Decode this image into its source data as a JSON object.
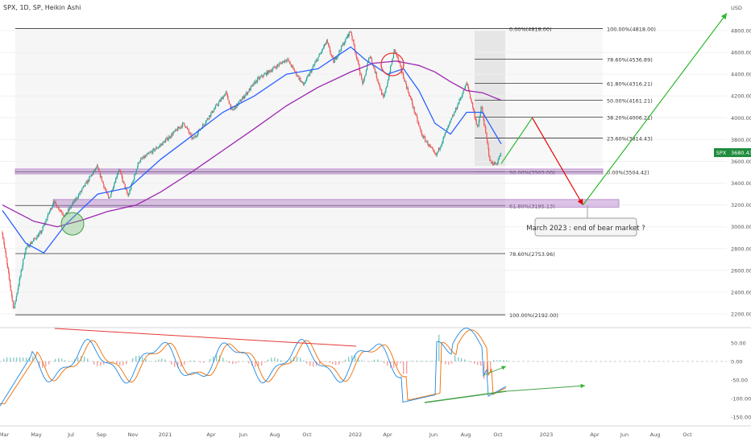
{
  "header": {
    "symbol_line": "SPX, 1D, SP, Heikin Ashi"
  },
  "price_axis": {
    "unit": "USD",
    "ticks": [
      "4800.00",
      "4600.00",
      "4400.00",
      "4200.00",
      "4000.00",
      "3800.00",
      "3600.00",
      "3400.00",
      "3200.00",
      "3000.00",
      "2800.00",
      "2600.00",
      "2400.00",
      "2200.00"
    ],
    "last_price_label": "3680.43",
    "ticker_label": "SPX",
    "last_price_color": "#1e8c3c"
  },
  "osc_axis": {
    "ticks": [
      "50.00",
      "0.00",
      "-50.00",
      "-100.00",
      "-150.00"
    ]
  },
  "time_axis": {
    "ticks": [
      "Mar",
      "May",
      "Jul",
      "Sep",
      "Nov",
      "2021",
      "Apr",
      "Jun",
      "Aug",
      "Oct",
      "2022",
      "Apr",
      "Jun",
      "Aug",
      "Oct",
      "2023",
      "Apr",
      "Jun",
      "Aug",
      "Oct"
    ]
  },
  "annotations": {
    "callout": "March 2023 : end of bear market ?"
  },
  "fib_long_labels": [
    "0.00%(4818.00)",
    "50.00%(3505.00)",
    "61.80%(3195.13)",
    "78.60%(2753.96)",
    "100.00%(2192.00)"
  ],
  "fib_short_labels": [
    "100.00%(4818.00)",
    "78.60%(4536.89)",
    "61.80%(4316.21)",
    "50.00%(4161.21)",
    "38.20%(4006.21)",
    "23.60%(3814.43)",
    "0.00%(3504.42)"
  ],
  "colors": {
    "bull_candle": "#26a69a",
    "bear_candle": "#ef5350",
    "ma_fast": "#2962ff",
    "ma_slow": "#9c27b0",
    "projection_up": "#2eb82e",
    "projection_down": "#e60000",
    "zone": "#b07cc6",
    "divergence_red": "#e53935",
    "divergence_green": "#43a047"
  },
  "chart_data": {
    "type": "candlestick",
    "price_path": [
      [
        "2020-03-01",
        2950
      ],
      [
        "2020-03-23",
        2240
      ],
      [
        "2020-04-15",
        2800
      ],
      [
        "2020-05-15",
        2950
      ],
      [
        "2020-06-08",
        3230
      ],
      [
        "2020-06-30",
        3100
      ],
      [
        "2020-08-31",
        3550
      ],
      [
        "2020-09-23",
        3250
      ],
      [
        "2020-10-12",
        3530
      ],
      [
        "2020-10-30",
        3280
      ],
      [
        "2020-11-20",
        3600
      ],
      [
        "2021-01-01",
        3750
      ],
      [
        "2021-02-15",
        3950
      ],
      [
        "2021-03-04",
        3800
      ],
      [
        "2021-05-07",
        4230
      ],
      [
        "2021-05-19",
        4060
      ],
      [
        "2021-07-07",
        4350
      ],
      [
        "2021-08-15",
        4480
      ],
      [
        "2021-09-02",
        4540
      ],
      [
        "2021-10-04",
        4300
      ],
      [
        "2021-11-18",
        4700
      ],
      [
        "2021-12-01",
        4510
      ],
      [
        "2022-01-03",
        4800
      ],
      [
        "2022-01-27",
        4300
      ],
      [
        "2022-02-09",
        4580
      ],
      [
        "2022-03-08",
        4170
      ],
      [
        "2022-03-29",
        4630
      ],
      [
        "2022-05-02",
        4130
      ],
      [
        "2022-05-20",
        3850
      ],
      [
        "2022-06-17",
        3650
      ],
      [
        "2022-08-16",
        4320
      ],
      [
        "2022-09-06",
        3900
      ],
      [
        "2022-09-13",
        4110
      ],
      [
        "2022-09-30",
        3590
      ],
      [
        "2022-10-12",
        3577
      ],
      [
        "2022-10-21",
        3680
      ]
    ],
    "ma_fast": [
      [
        "2020-03-01",
        3150
      ],
      [
        "2020-04-15",
        2850
      ],
      [
        "2020-05-20",
        2760
      ],
      [
        "2020-07-01",
        3020
      ],
      [
        "2020-09-01",
        3300
      ],
      [
        "2020-11-01",
        3360
      ],
      [
        "2021-01-01",
        3620
      ],
      [
        "2021-03-01",
        3830
      ],
      [
        "2021-05-01",
        4050
      ],
      [
        "2021-07-01",
        4200
      ],
      [
        "2021-09-01",
        4400
      ],
      [
        "2021-11-01",
        4450
      ],
      [
        "2022-01-03",
        4650
      ],
      [
        "2022-02-01",
        4530
      ],
      [
        "2022-03-15",
        4400
      ],
      [
        "2022-04-15",
        4450
      ],
      [
        "2022-05-15",
        4250
      ],
      [
        "2022-06-15",
        3950
      ],
      [
        "2022-07-15",
        3850
      ],
      [
        "2022-08-15",
        4050
      ],
      [
        "2022-09-15",
        4050
      ],
      [
        "2022-10-21",
        3760
      ]
    ],
    "ma_slow": [
      [
        "2020-03-01",
        3200
      ],
      [
        "2020-05-01",
        3050
      ],
      [
        "2020-06-15",
        3000
      ],
      [
        "2020-08-01",
        3060
      ],
      [
        "2020-09-20",
        3140
      ],
      [
        "2020-11-15",
        3200
      ],
      [
        "2021-01-01",
        3320
      ],
      [
        "2021-03-01",
        3500
      ],
      [
        "2021-05-01",
        3700
      ],
      [
        "2021-07-01",
        3900
      ],
      [
        "2021-09-01",
        4110
      ],
      [
        "2021-11-01",
        4280
      ],
      [
        "2022-01-03",
        4420
      ],
      [
        "2022-02-15",
        4500
      ],
      [
        "2022-04-01",
        4520
      ],
      [
        "2022-05-15",
        4480
      ],
      [
        "2022-06-15",
        4420
      ],
      [
        "2022-07-15",
        4330
      ],
      [
        "2022-08-15",
        4250
      ],
      [
        "2022-09-15",
        4230
      ],
      [
        "2022-10-21",
        4160
      ]
    ],
    "fib_long": [
      {
        "level": "0.00%",
        "value": 4818
      },
      {
        "level": "50.00%",
        "value": 3505
      },
      {
        "level": "61.80%",
        "value": 3195.13
      },
      {
        "level": "78.60%",
        "value": 2753.96
      },
      {
        "level": "100.00%",
        "value": 2192
      }
    ],
    "fib_short": [
      {
        "level": "100.00%",
        "value": 4818
      },
      {
        "level": "78.60%",
        "value": 4536.89
      },
      {
        "level": "61.80%",
        "value": 4316.21
      },
      {
        "level": "50.00%",
        "value": 4161.21
      },
      {
        "level": "38.20%",
        "value": 4006.21
      },
      {
        "level": "23.60%",
        "value": 3814.43
      },
      {
        "level": "0.00%",
        "value": 3504.42
      }
    ],
    "zones": [
      {
        "from": 3485,
        "to": 3530
      },
      {
        "from": 3180,
        "to": 3250
      }
    ],
    "projection": [
      [
        "2022-10-21",
        3580
      ],
      [
        "2022-12-20",
        4000
      ],
      [
        "2023-03-28",
        3200
      ],
      [
        "2023-12-31",
        4960
      ]
    ],
    "last_price": 3680.43,
    "y_range": [
      2100,
      5000
    ],
    "osc_range": [
      -175,
      95
    ]
  }
}
